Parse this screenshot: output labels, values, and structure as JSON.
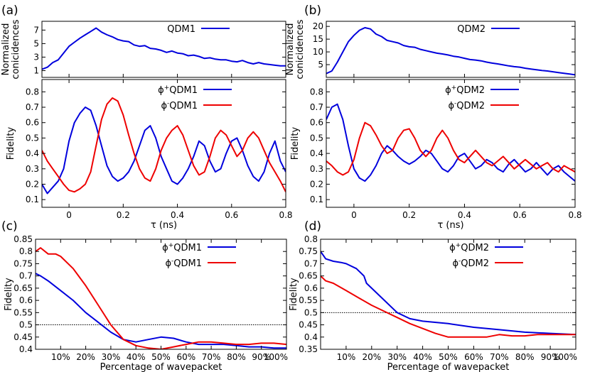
{
  "chart_data": [
    {
      "id": "a_top",
      "panel_label": "(a)",
      "type": "line",
      "ylabel": "Normalized\nconicidences",
      "xlim": [
        -0.1,
        0.8
      ],
      "ylim": [
        0,
        8.3
      ],
      "yticks": [
        1,
        3,
        5,
        7
      ],
      "series": [
        {
          "name": "QDM1",
          "color": "#0000dd",
          "x": [
            -0.1,
            -0.08,
            -0.06,
            -0.04,
            -0.02,
            0.0,
            0.02,
            0.04,
            0.06,
            0.08,
            0.1,
            0.12,
            0.14,
            0.16,
            0.18,
            0.2,
            0.22,
            0.24,
            0.26,
            0.28,
            0.3,
            0.32,
            0.34,
            0.36,
            0.38,
            0.4,
            0.42,
            0.44,
            0.46,
            0.48,
            0.5,
            0.52,
            0.54,
            0.56,
            0.58,
            0.6,
            0.62,
            0.64,
            0.66,
            0.68,
            0.7,
            0.72,
            0.74,
            0.76,
            0.78,
            0.8
          ],
          "y": [
            1.2,
            1.5,
            2.2,
            2.6,
            3.6,
            4.6,
            5.2,
            5.8,
            6.3,
            6.8,
            7.3,
            6.7,
            6.3,
            6.0,
            5.6,
            5.4,
            5.3,
            4.8,
            4.6,
            4.7,
            4.3,
            4.2,
            4.0,
            3.7,
            3.9,
            3.6,
            3.5,
            3.2,
            3.3,
            3.1,
            2.8,
            2.9,
            2.7,
            2.6,
            2.6,
            2.4,
            2.3,
            2.5,
            2.2,
            2.0,
            2.2,
            2.0,
            1.9,
            1.8,
            1.7,
            1.7
          ]
        }
      ]
    },
    {
      "id": "b_top",
      "panel_label": "(b)",
      "type": "line",
      "ylabel": "Normalized\nconicidences",
      "xlim": [
        -0.1,
        0.8
      ],
      "ylim": [
        0,
        22
      ],
      "yticks": [
        5,
        10,
        15,
        20
      ],
      "series": [
        {
          "name": "QDM2",
          "color": "#0000dd",
          "x": [
            -0.1,
            -0.08,
            -0.06,
            -0.04,
            -0.02,
            0.0,
            0.02,
            0.04,
            0.06,
            0.08,
            0.1,
            0.12,
            0.14,
            0.16,
            0.18,
            0.2,
            0.22,
            0.24,
            0.26,
            0.28,
            0.3,
            0.32,
            0.34,
            0.36,
            0.38,
            0.4,
            0.42,
            0.44,
            0.46,
            0.48,
            0.5,
            0.52,
            0.54,
            0.56,
            0.58,
            0.6,
            0.62,
            0.64,
            0.66,
            0.68,
            0.7,
            0.72,
            0.74,
            0.76,
            0.78,
            0.8
          ],
          "y": [
            1.5,
            2.5,
            6.0,
            10.0,
            14.0,
            16.5,
            18.5,
            19.5,
            19.0,
            17.0,
            16.0,
            14.5,
            14.0,
            13.5,
            12.5,
            12.0,
            11.8,
            11.0,
            10.5,
            10.0,
            9.5,
            9.2,
            8.8,
            8.3,
            8.0,
            7.5,
            7.0,
            6.8,
            6.5,
            6.0,
            5.6,
            5.3,
            4.9,
            4.5,
            4.2,
            4.0,
            3.6,
            3.3,
            3.0,
            2.7,
            2.5,
            2.2,
            1.9,
            1.6,
            1.3,
            1.0
          ]
        }
      ]
    },
    {
      "id": "a_mid",
      "type": "line",
      "ylabel": "Fidelity",
      "xlabel": "τ (ns)",
      "xlim": [
        -0.1,
        0.8
      ],
      "ylim": [
        0.05,
        0.88
      ],
      "xticks": [
        0,
        0.2,
        0.4,
        0.6,
        0.8
      ],
      "xtick_labels": [
        "0",
        "0.2",
        "0.4",
        "0.6",
        "0.8"
      ],
      "yticks": [
        0.1,
        0.2,
        0.3,
        0.4,
        0.5,
        0.6,
        0.7,
        0.8
      ],
      "series": [
        {
          "name": "ϕ+QDM1",
          "color": "#0000dd",
          "x": [
            -0.1,
            -0.08,
            -0.06,
            -0.04,
            -0.02,
            0.0,
            0.02,
            0.04,
            0.06,
            0.08,
            0.1,
            0.12,
            0.14,
            0.16,
            0.18,
            0.2,
            0.22,
            0.24,
            0.26,
            0.28,
            0.3,
            0.32,
            0.34,
            0.36,
            0.38,
            0.4,
            0.42,
            0.44,
            0.46,
            0.48,
            0.5,
            0.52,
            0.54,
            0.56,
            0.58,
            0.6,
            0.62,
            0.64,
            0.66,
            0.68,
            0.7,
            0.72,
            0.74,
            0.76,
            0.78,
            0.8
          ],
          "y": [
            0.2,
            0.14,
            0.18,
            0.22,
            0.3,
            0.48,
            0.6,
            0.66,
            0.7,
            0.68,
            0.58,
            0.45,
            0.32,
            0.25,
            0.22,
            0.24,
            0.28,
            0.35,
            0.45,
            0.55,
            0.58,
            0.5,
            0.38,
            0.3,
            0.22,
            0.2,
            0.24,
            0.3,
            0.38,
            0.48,
            0.45,
            0.35,
            0.28,
            0.3,
            0.4,
            0.48,
            0.5,
            0.42,
            0.32,
            0.25,
            0.22,
            0.28,
            0.4,
            0.48,
            0.35,
            0.28
          ]
        },
        {
          "name": "ϕ-QDM1",
          "color": "#ee0000",
          "x": [
            -0.1,
            -0.08,
            -0.06,
            -0.04,
            -0.02,
            0.0,
            0.02,
            0.04,
            0.06,
            0.08,
            0.1,
            0.12,
            0.14,
            0.16,
            0.18,
            0.2,
            0.22,
            0.24,
            0.26,
            0.28,
            0.3,
            0.32,
            0.34,
            0.36,
            0.38,
            0.4,
            0.42,
            0.44,
            0.46,
            0.48,
            0.5,
            0.52,
            0.54,
            0.56,
            0.58,
            0.6,
            0.62,
            0.64,
            0.66,
            0.68,
            0.7,
            0.72,
            0.74,
            0.76,
            0.78,
            0.8
          ],
          "y": [
            0.42,
            0.35,
            0.3,
            0.25,
            0.2,
            0.16,
            0.15,
            0.17,
            0.2,
            0.28,
            0.45,
            0.62,
            0.72,
            0.76,
            0.74,
            0.65,
            0.52,
            0.4,
            0.3,
            0.24,
            0.22,
            0.3,
            0.42,
            0.5,
            0.55,
            0.58,
            0.52,
            0.42,
            0.32,
            0.26,
            0.28,
            0.38,
            0.5,
            0.55,
            0.52,
            0.45,
            0.38,
            0.42,
            0.5,
            0.54,
            0.5,
            0.42,
            0.34,
            0.28,
            0.22,
            0.15
          ]
        }
      ]
    },
    {
      "id": "b_mid",
      "type": "line",
      "ylabel": "Fidelity",
      "xlabel": "τ (ns)",
      "xlim": [
        -0.1,
        0.8
      ],
      "ylim": [
        0.05,
        0.88
      ],
      "xticks": [
        0,
        0.2,
        0.4,
        0.6,
        0.8
      ],
      "xtick_labels": [
        "0",
        "0.2",
        "0.4",
        "0.6",
        "0.8"
      ],
      "yticks": [
        0.1,
        0.2,
        0.3,
        0.4,
        0.5,
        0.6,
        0.7,
        0.8
      ],
      "series": [
        {
          "name": "ϕ+QDM2",
          "color": "#0000dd",
          "x": [
            -0.1,
            -0.08,
            -0.06,
            -0.04,
            -0.02,
            0.0,
            0.02,
            0.04,
            0.06,
            0.08,
            0.1,
            0.12,
            0.14,
            0.16,
            0.18,
            0.2,
            0.22,
            0.24,
            0.26,
            0.28,
            0.3,
            0.32,
            0.34,
            0.36,
            0.38,
            0.4,
            0.42,
            0.44,
            0.46,
            0.48,
            0.5,
            0.52,
            0.54,
            0.56,
            0.58,
            0.6,
            0.62,
            0.64,
            0.66,
            0.68,
            0.7,
            0.72,
            0.74,
            0.76,
            0.78,
            0.8
          ],
          "y": [
            0.62,
            0.7,
            0.72,
            0.62,
            0.45,
            0.3,
            0.24,
            0.22,
            0.26,
            0.32,
            0.4,
            0.45,
            0.42,
            0.38,
            0.35,
            0.33,
            0.35,
            0.38,
            0.42,
            0.4,
            0.35,
            0.3,
            0.28,
            0.32,
            0.38,
            0.4,
            0.35,
            0.3,
            0.32,
            0.36,
            0.34,
            0.3,
            0.28,
            0.33,
            0.36,
            0.32,
            0.28,
            0.3,
            0.34,
            0.3,
            0.26,
            0.3,
            0.32,
            0.28,
            0.25,
            0.22
          ]
        },
        {
          "name": "ϕ-QDM2",
          "color": "#ee0000",
          "x": [
            -0.1,
            -0.08,
            -0.06,
            -0.04,
            -0.02,
            0.0,
            0.02,
            0.04,
            0.06,
            0.08,
            0.1,
            0.12,
            0.14,
            0.16,
            0.18,
            0.2,
            0.22,
            0.24,
            0.26,
            0.28,
            0.3,
            0.32,
            0.34,
            0.36,
            0.38,
            0.4,
            0.42,
            0.44,
            0.46,
            0.48,
            0.5,
            0.52,
            0.54,
            0.56,
            0.58,
            0.6,
            0.62,
            0.64,
            0.66,
            0.68,
            0.7,
            0.72,
            0.74,
            0.76,
            0.78,
            0.8
          ],
          "y": [
            0.35,
            0.32,
            0.28,
            0.26,
            0.28,
            0.36,
            0.5,
            0.6,
            0.58,
            0.52,
            0.45,
            0.4,
            0.42,
            0.5,
            0.55,
            0.56,
            0.5,
            0.42,
            0.38,
            0.42,
            0.5,
            0.55,
            0.5,
            0.42,
            0.36,
            0.34,
            0.38,
            0.42,
            0.38,
            0.34,
            0.32,
            0.35,
            0.38,
            0.34,
            0.3,
            0.33,
            0.36,
            0.33,
            0.3,
            0.32,
            0.34,
            0.3,
            0.28,
            0.32,
            0.3,
            0.28
          ]
        }
      ]
    },
    {
      "id": "c",
      "panel_label": "(c)",
      "type": "line",
      "ylabel": "Fidelity",
      "xlabel": "Percentage of wavepacket",
      "xlim": [
        0,
        100
      ],
      "ylim": [
        0.4,
        0.85
      ],
      "xticks": [
        10,
        20,
        30,
        40,
        50,
        60,
        70,
        80,
        90,
        100
      ],
      "xtick_labels": [
        "10%",
        "20%",
        "30%",
        "40%",
        "50%",
        "60%",
        "70%",
        "80%",
        "90%",
        "100%"
      ],
      "yticks": [
        0.4,
        0.45,
        0.5,
        0.55,
        0.6,
        0.65,
        0.7,
        0.75,
        0.8,
        0.85
      ],
      "ytick_labels": [
        "0.4",
        "0.45",
        "0.5",
        "0.55",
        "0.6",
        "0.65",
        "0.7",
        "0.75",
        "0.8",
        "0.85"
      ],
      "reference_line": 0.5,
      "series": [
        {
          "name": "ϕ+QDM1",
          "color": "#0000dd",
          "x": [
            0,
            2,
            5,
            10,
            15,
            20,
            25,
            30,
            35,
            40,
            45,
            50,
            55,
            60,
            65,
            70,
            75,
            80,
            85,
            90,
            95,
            100
          ],
          "y": [
            0.71,
            0.7,
            0.68,
            0.64,
            0.6,
            0.55,
            0.51,
            0.47,
            0.44,
            0.43,
            0.44,
            0.45,
            0.445,
            0.43,
            0.42,
            0.42,
            0.42,
            0.415,
            0.41,
            0.41,
            0.405,
            0.405
          ]
        },
        {
          "name": "ϕ-QDM1",
          "color": "#ee0000",
          "x": [
            0,
            2,
            5,
            8,
            10,
            15,
            20,
            25,
            30,
            35,
            40,
            45,
            50,
            55,
            60,
            65,
            70,
            75,
            80,
            85,
            90,
            95,
            100
          ],
          "y": [
            0.8,
            0.815,
            0.79,
            0.79,
            0.78,
            0.73,
            0.66,
            0.58,
            0.5,
            0.44,
            0.415,
            0.405,
            0.4,
            0.41,
            0.42,
            0.43,
            0.43,
            0.425,
            0.42,
            0.42,
            0.425,
            0.425,
            0.42
          ]
        }
      ]
    },
    {
      "id": "d",
      "panel_label": "(d)",
      "type": "line",
      "ylabel": "Fidelity",
      "xlabel": "Percentage of wavepacket",
      "xlim": [
        0,
        100
      ],
      "ylim": [
        0.35,
        0.8
      ],
      "xticks": [
        10,
        20,
        30,
        40,
        50,
        60,
        70,
        80,
        90,
        100
      ],
      "xtick_labels": [
        "10%",
        "20%",
        "30%",
        "40%",
        "50%",
        "60%",
        "70%",
        "80%",
        "90%",
        "100%"
      ],
      "yticks": [
        0.35,
        0.4,
        0.45,
        0.5,
        0.55,
        0.6,
        0.65,
        0.7,
        0.75,
        0.8
      ],
      "ytick_labels": [
        "0.35",
        "0.4",
        "0.45",
        "0.5",
        "0.55",
        "0.6",
        "0.65",
        "0.7",
        "0.75",
        "0.8"
      ],
      "reference_line": 0.5,
      "series": [
        {
          "name": "ϕ+QDM2",
          "color": "#0000dd",
          "x": [
            0,
            2,
            5,
            8,
            10,
            14,
            17,
            18,
            20,
            25,
            30,
            35,
            40,
            50,
            60,
            70,
            80,
            90,
            100
          ],
          "y": [
            0.75,
            0.72,
            0.71,
            0.705,
            0.7,
            0.68,
            0.65,
            0.62,
            0.6,
            0.55,
            0.5,
            0.475,
            0.465,
            0.455,
            0.44,
            0.43,
            0.42,
            0.415,
            0.41
          ]
        },
        {
          "name": "ϕ-QDM2",
          "color": "#ee0000",
          "x": [
            0,
            2,
            5,
            10,
            15,
            20,
            25,
            30,
            35,
            40,
            45,
            50,
            55,
            60,
            65,
            70,
            75,
            80,
            85,
            90,
            95,
            100
          ],
          "y": [
            0.65,
            0.63,
            0.62,
            0.59,
            0.56,
            0.53,
            0.505,
            0.48,
            0.455,
            0.435,
            0.415,
            0.4,
            0.4,
            0.4,
            0.4,
            0.41,
            0.405,
            0.405,
            0.41,
            0.41,
            0.41,
            0.41
          ]
        }
      ]
    }
  ]
}
